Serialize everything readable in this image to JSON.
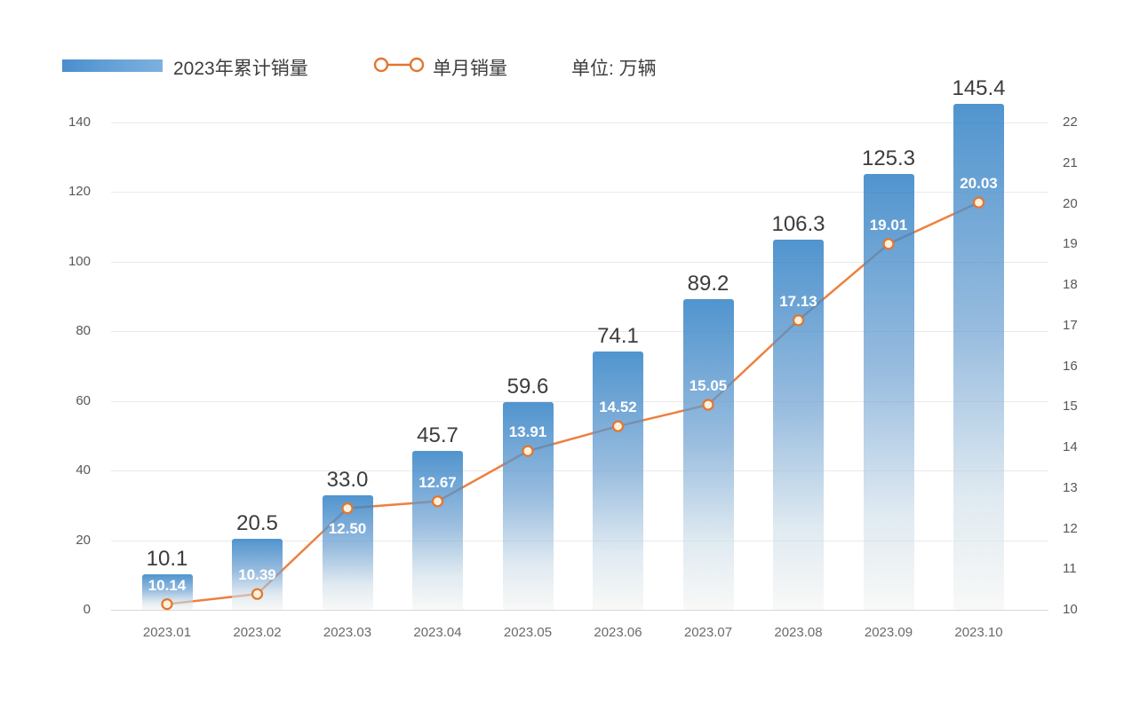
{
  "legend": {
    "bar_label": "2023年累计销量",
    "line_label": "单月销量",
    "unit_label": "单位: 万辆"
  },
  "colors": {
    "bar_top": "#5799d2",
    "bar_bottom": "#f2f4f1",
    "line": "#ec8140",
    "marker_fill": "#fcf2dc",
    "marker_stroke": "#e2762f",
    "bar_value_text": "#3c3c3c",
    "line_value_text": "#ffffff",
    "axis_text": "#585858",
    "gridline": "#e9e9e9",
    "legend_text": "#3e3e3e"
  },
  "chart_data": {
    "type": "bar+line",
    "title": "",
    "unit": "万辆",
    "legend_position": "top-left",
    "grid": "horizontal",
    "categories": [
      "2023.01",
      "2023.02",
      "2023.03",
      "2023.04",
      "2023.05",
      "2023.06",
      "2023.07",
      "2023.08",
      "2023.09",
      "2023.10"
    ],
    "series": [
      {
        "name": "2023年累计销量",
        "type": "bar",
        "y_axis": "left",
        "values": [
          10.1,
          20.5,
          33.0,
          45.7,
          59.6,
          74.1,
          89.2,
          106.3,
          125.3,
          145.4
        ],
        "labels": [
          "10.1",
          "20.5",
          "33.0",
          "45.7",
          "59.6",
          "74.1",
          "89.2",
          "106.3",
          "125.3",
          "145.4"
        ]
      },
      {
        "name": "单月销量",
        "type": "line",
        "y_axis": "right",
        "values": [
          10.14,
          10.39,
          12.5,
          12.67,
          13.91,
          14.52,
          15.05,
          17.13,
          19.01,
          20.03
        ],
        "labels": [
          "10.14",
          "10.39",
          "12.50",
          "12.67",
          "13.91",
          "14.52",
          "15.05",
          "17.13",
          "19.01",
          "20.03"
        ],
        "label_below_indices": [
          2
        ]
      }
    ],
    "left_axis": {
      "range": [
        0,
        140
      ],
      "step": 20,
      "ticks": [
        0,
        20,
        40,
        60,
        80,
        100,
        120,
        140
      ]
    },
    "right_axis": {
      "range": [
        10,
        22
      ],
      "step": 1,
      "ticks": [
        10,
        11,
        12,
        13,
        14,
        15,
        16,
        17,
        18,
        19,
        20,
        21,
        22
      ]
    }
  }
}
